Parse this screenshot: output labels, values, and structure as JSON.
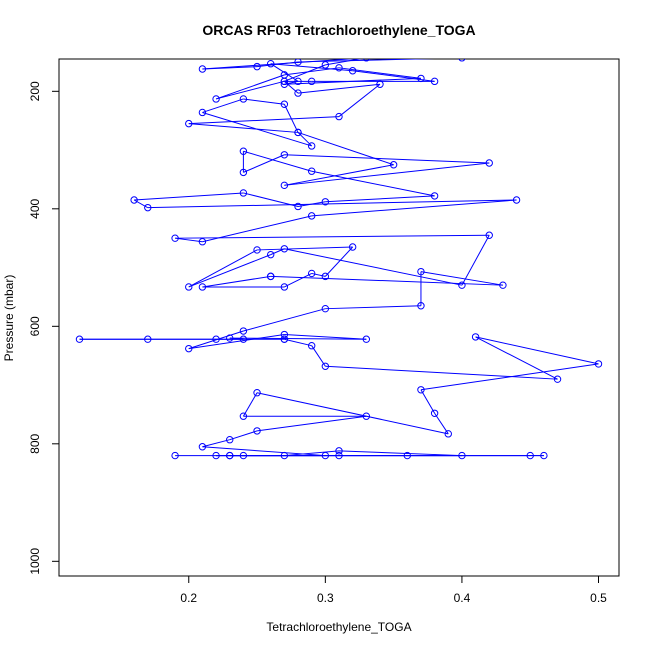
{
  "chart_data": {
    "type": "line",
    "title": "ORCAS RF03 Tetrachloroethylene_TOGA",
    "xlabel": "Tetrachloroethylene_TOGA",
    "ylabel": "Pressure (mbar)",
    "xlim": [
      0.105,
      0.515
    ],
    "ylim": [
      1025,
      145
    ],
    "y_reversed": true,
    "x_ticks": [
      0.2,
      0.3,
      0.4,
      0.5
    ],
    "x_tick_labels": [
      "0.2",
      "0.3",
      "0.4",
      "0.5"
    ],
    "y_ticks": [
      200,
      400,
      600,
      800,
      1000
    ],
    "y_tick_labels": [
      "200",
      "400",
      "600",
      "800",
      "1000"
    ],
    "grid": false,
    "legend": "none",
    "line_color": "#0000ff",
    "marker": "open-circle",
    "series": [
      {
        "x": [
          0.19,
          0.23,
          0.31,
          0.45,
          0.46,
          0.36,
          0.22,
          0.27,
          0.31,
          0.4,
          0.24,
          0.23,
          0.3,
          0.21,
          0.23,
          0.25,
          0.33,
          0.24,
          0.25,
          0.39,
          0.38,
          0.37,
          0.5,
          0.41,
          0.47,
          0.3,
          0.29,
          0.27,
          0.27,
          0.12,
          0.17,
          0.22,
          0.24,
          0.23,
          0.33,
          0.27,
          0.2,
          0.24,
          0.3,
          0.37,
          0.37,
          0.43,
          0.26,
          0.26,
          0.21,
          0.27,
          0.29,
          0.3,
          0.32,
          0.25,
          0.2,
          0.26,
          0.27,
          0.4,
          0.42,
          0.19,
          0.21,
          0.29,
          0.44,
          0.17,
          0.16,
          0.24,
          0.28,
          0.3,
          0.38,
          0.29,
          0.24,
          0.24,
          0.27,
          0.42,
          0.27,
          0.35,
          0.28,
          0.27,
          0.24,
          0.21,
          0.29,
          0.28,
          0.2,
          0.31,
          0.34,
          0.28,
          0.27,
          0.22,
          0.27,
          0.31,
          0.37,
          0.27,
          0.28,
          0.26,
          0.32,
          0.38,
          0.29,
          0.27,
          0.3,
          0.33,
          0.21,
          0.25,
          0.28,
          0.4
        ]
      },
      {
        "y": [
          820,
          820,
          820,
          820,
          820,
          820,
          820,
          820,
          812,
          820,
          820,
          820,
          820,
          805,
          793,
          778,
          753,
          753,
          713,
          783,
          748,
          708,
          664,
          618,
          690,
          668,
          633,
          622,
          622,
          622,
          622,
          622,
          622,
          620,
          622,
          614,
          638,
          608,
          570,
          565,
          507,
          530,
          515,
          515,
          533,
          533,
          510,
          515,
          465,
          470,
          533,
          478,
          468,
          530,
          445,
          450,
          456,
          412,
          385,
          398,
          385,
          373,
          396,
          388,
          378,
          336,
          302,
          338,
          308,
          322,
          360,
          325,
          270,
          222,
          213,
          236,
          293,
          270,
          255,
          243,
          188,
          203,
          183,
          213,
          172,
          160,
          178,
          188,
          183,
          153,
          165,
          183,
          183,
          183,
          155,
          143,
          162,
          158,
          150,
          143
        ]
      }
    ]
  }
}
